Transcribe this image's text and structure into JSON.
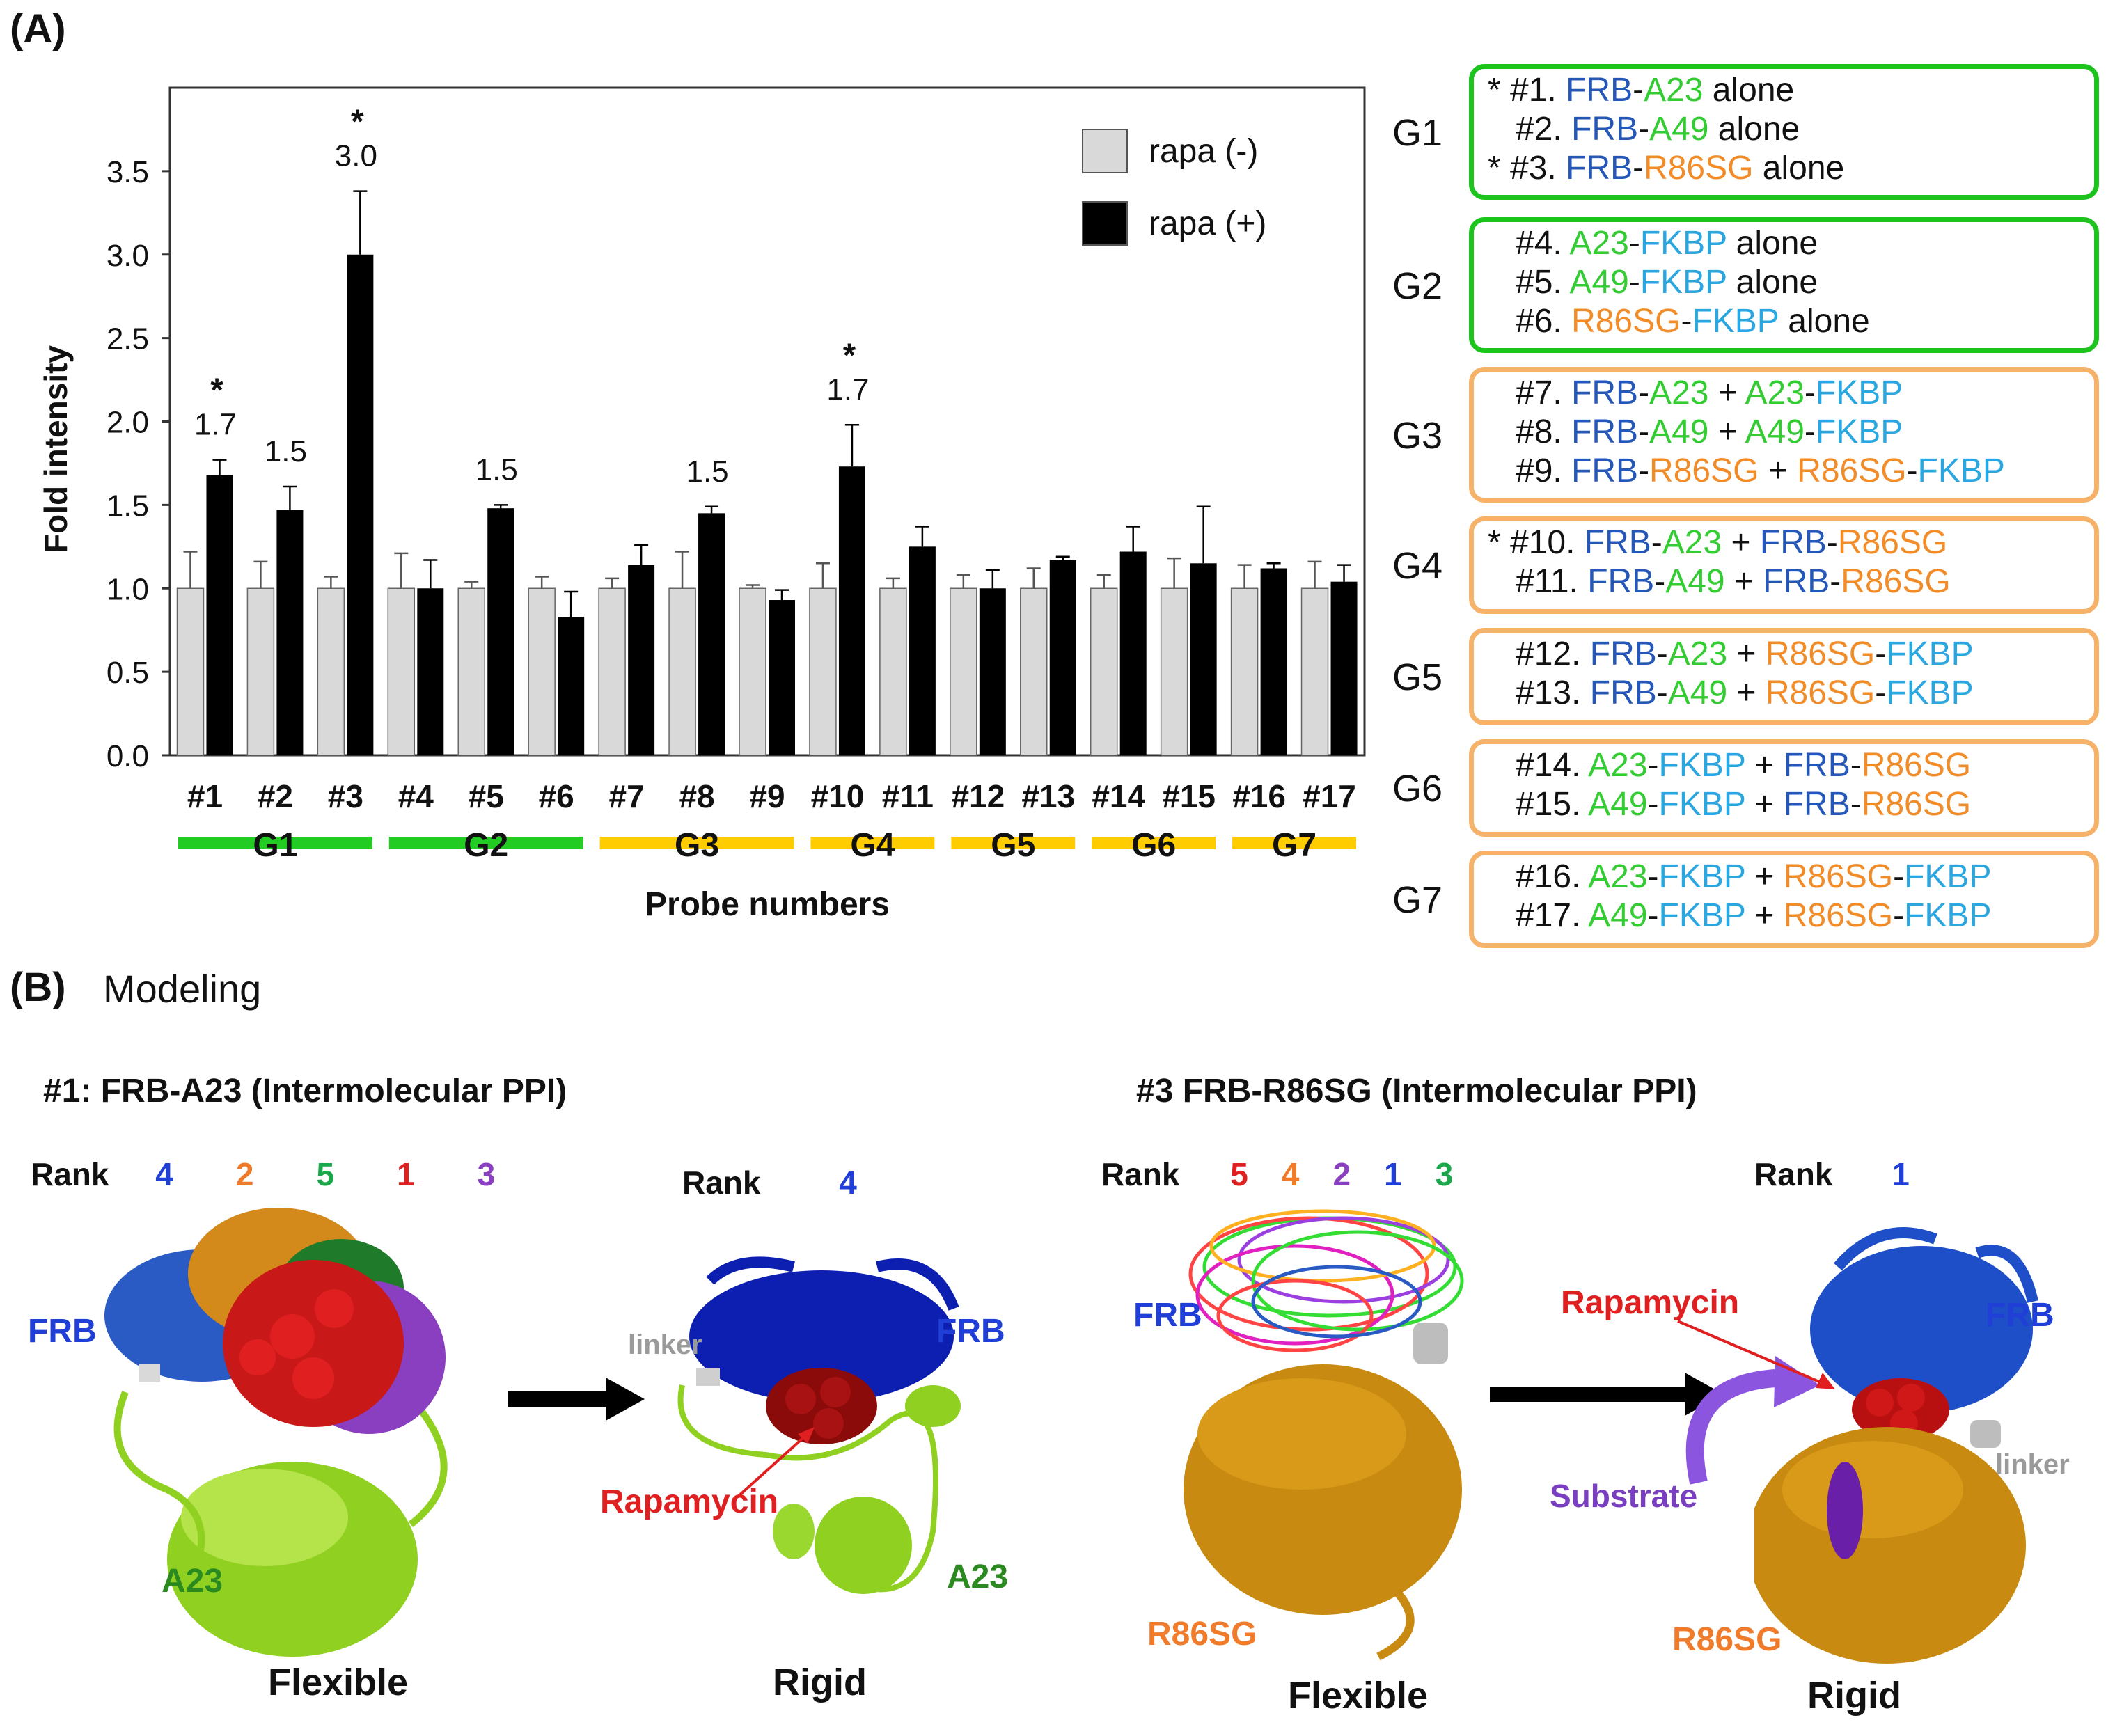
{
  "panel_a": {
    "label": "(A)"
  },
  "panel_b": {
    "label": "(B)",
    "title": "Modeling"
  },
  "colors": {
    "rapa_minus": "#d9d9d9",
    "rapa_plus": "#000000",
    "frb": "#2457b8",
    "a_green": "#33cc33",
    "r86sg": "#f28c28",
    "fkbp": "#2aa7e0",
    "box_green": "#1ec41e",
    "box_orange": "#f7b26a",
    "bar_green": "#22cc22",
    "bar_yellow": "#ffcc00"
  },
  "chart_data": {
    "type": "bar",
    "ylabel": "Fold intensity",
    "xlabel": "Probe numbers",
    "ylim": [
      0,
      4.0
    ],
    "yticks": [
      "0.0",
      "0.5",
      "1.0",
      "1.5",
      "2.0",
      "2.5",
      "3.0",
      "3.5"
    ],
    "categories": [
      "#1",
      "#2",
      "#3",
      "#4",
      "#5",
      "#6",
      "#7",
      "#8",
      "#9",
      "#10",
      "#11",
      "#12",
      "#13",
      "#14",
      "#15",
      "#16",
      "#17"
    ],
    "legend_position": "top-right",
    "series": [
      {
        "name": "rapa (-)",
        "values": [
          1.0,
          1.0,
          1.0,
          1.0,
          1.0,
          1.0,
          1.0,
          1.0,
          1.0,
          1.0,
          1.0,
          1.0,
          1.0,
          1.0,
          1.0,
          1.0,
          1.0
        ],
        "errors": [
          0.22,
          0.16,
          0.07,
          0.21,
          0.04,
          0.07,
          0.06,
          0.22,
          0.02,
          0.15,
          0.06,
          0.08,
          0.12,
          0.08,
          0.18,
          0.14,
          0.16
        ]
      },
      {
        "name": "rapa (+)",
        "values": [
          1.68,
          1.47,
          3.0,
          1.0,
          1.48,
          0.83,
          1.14,
          1.45,
          0.93,
          1.73,
          1.25,
          1.0,
          1.17,
          1.22,
          1.15,
          1.12,
          1.04
        ],
        "errors": [
          0.09,
          0.14,
          0.38,
          0.17,
          0.02,
          0.15,
          0.12,
          0.04,
          0.06,
          0.25,
          0.12,
          0.11,
          0.02,
          0.15,
          0.34,
          0.03,
          0.1
        ]
      }
    ],
    "annotations": [
      {
        "index": 0,
        "text": "1.7",
        "star": true
      },
      {
        "index": 1,
        "text": "1.5",
        "star": false
      },
      {
        "index": 2,
        "text": "3.0",
        "star": true
      },
      {
        "index": 4,
        "text": "1.5",
        "star": false
      },
      {
        "index": 7,
        "text": "1.5",
        "star": false
      },
      {
        "index": 9,
        "text": "1.7",
        "star": true
      }
    ],
    "groups": [
      {
        "name": "G1",
        "from": 0,
        "to": 2,
        "color": "green"
      },
      {
        "name": "G2",
        "from": 3,
        "to": 5,
        "color": "green"
      },
      {
        "name": "G3",
        "from": 6,
        "to": 8,
        "color": "yellow"
      },
      {
        "name": "G4",
        "from": 9,
        "to": 10,
        "color": "yellow"
      },
      {
        "name": "G5",
        "from": 11,
        "to": 12,
        "color": "yellow"
      },
      {
        "name": "G6",
        "from": 13,
        "to": 14,
        "color": "yellow"
      },
      {
        "name": "G7",
        "from": 15,
        "to": 16,
        "color": "yellow"
      }
    ]
  },
  "probe_legend": [
    {
      "group": "G1",
      "border": "green",
      "lines": [
        [
          {
            "t": "* ",
            "c": "k"
          },
          {
            "t": "#1. ",
            "c": "k"
          },
          {
            "t": "FRB",
            "c": "frb"
          },
          {
            "t": "-",
            "c": "k"
          },
          {
            "t": "A23",
            "c": "g"
          },
          {
            "t": " alone",
            "c": "k"
          }
        ],
        [
          {
            "t": "   #2. ",
            "c": "k"
          },
          {
            "t": "FRB",
            "c": "frb"
          },
          {
            "t": "-",
            "c": "k"
          },
          {
            "t": "A49",
            "c": "g"
          },
          {
            "t": " alone",
            "c": "k"
          }
        ],
        [
          {
            "t": "* ",
            "c": "k"
          },
          {
            "t": "#3. ",
            "c": "k"
          },
          {
            "t": "FRB",
            "c": "frb"
          },
          {
            "t": "-",
            "c": "k"
          },
          {
            "t": "R86SG",
            "c": "o"
          },
          {
            "t": " alone",
            "c": "k"
          }
        ]
      ]
    },
    {
      "group": "G2",
      "border": "green",
      "lines": [
        [
          {
            "t": "#4. ",
            "c": "k"
          },
          {
            "t": "A23",
            "c": "g"
          },
          {
            "t": "-",
            "c": "k"
          },
          {
            "t": "FKBP",
            "c": "f"
          },
          {
            "t": " alone",
            "c": "k"
          }
        ],
        [
          {
            "t": "#5. ",
            "c": "k"
          },
          {
            "t": "A49",
            "c": "g"
          },
          {
            "t": "-",
            "c": "k"
          },
          {
            "t": "FKBP",
            "c": "f"
          },
          {
            "t": " alone",
            "c": "k"
          }
        ],
        [
          {
            "t": "#6. ",
            "c": "k"
          },
          {
            "t": "R86SG",
            "c": "o"
          },
          {
            "t": "-",
            "c": "k"
          },
          {
            "t": "FKBP",
            "c": "f"
          },
          {
            "t": " alone",
            "c": "k"
          }
        ]
      ]
    },
    {
      "group": "G3",
      "border": "orange",
      "lines": [
        [
          {
            "t": "#7. ",
            "c": "k"
          },
          {
            "t": "FRB",
            "c": "frb"
          },
          {
            "t": "-",
            "c": "k"
          },
          {
            "t": "A23",
            "c": "g"
          },
          {
            "t": " + ",
            "c": "k"
          },
          {
            "t": "A23",
            "c": "g"
          },
          {
            "t": "-",
            "c": "k"
          },
          {
            "t": "FKBP",
            "c": "f"
          }
        ],
        [
          {
            "t": "#8. ",
            "c": "k"
          },
          {
            "t": "FRB",
            "c": "frb"
          },
          {
            "t": "-",
            "c": "k"
          },
          {
            "t": "A49",
            "c": "g"
          },
          {
            "t": " + ",
            "c": "k"
          },
          {
            "t": "A49",
            "c": "g"
          },
          {
            "t": "-",
            "c": "k"
          },
          {
            "t": "FKBP",
            "c": "f"
          }
        ],
        [
          {
            "t": "#9. ",
            "c": "k"
          },
          {
            "t": "FRB",
            "c": "frb"
          },
          {
            "t": "-",
            "c": "k"
          },
          {
            "t": "R86SG",
            "c": "o"
          },
          {
            "t": " + ",
            "c": "k"
          },
          {
            "t": "R86SG",
            "c": "o"
          },
          {
            "t": "-",
            "c": "k"
          },
          {
            "t": "FKBP",
            "c": "f"
          }
        ]
      ]
    },
    {
      "group": "G4",
      "border": "orange",
      "lines": [
        [
          {
            "t": "* ",
            "c": "k"
          },
          {
            "t": "#10. ",
            "c": "k"
          },
          {
            "t": "FRB",
            "c": "frb"
          },
          {
            "t": "-",
            "c": "k"
          },
          {
            "t": "A23",
            "c": "g"
          },
          {
            "t": " + ",
            "c": "k"
          },
          {
            "t": "FRB",
            "c": "frb"
          },
          {
            "t": "-",
            "c": "k"
          },
          {
            "t": "R86SG",
            "c": "o"
          }
        ],
        [
          {
            "t": "   #11. ",
            "c": "k"
          },
          {
            "t": "FRB",
            "c": "frb"
          },
          {
            "t": "-",
            "c": "k"
          },
          {
            "t": "A49",
            "c": "g"
          },
          {
            "t": " + ",
            "c": "k"
          },
          {
            "t": "FRB",
            "c": "frb"
          },
          {
            "t": "-",
            "c": "k"
          },
          {
            "t": "R86SG",
            "c": "o"
          }
        ]
      ]
    },
    {
      "group": "G5",
      "border": "orange",
      "lines": [
        [
          {
            "t": "#12. ",
            "c": "k"
          },
          {
            "t": "FRB",
            "c": "frb"
          },
          {
            "t": "-",
            "c": "k"
          },
          {
            "t": "A23",
            "c": "g"
          },
          {
            "t": " + ",
            "c": "k"
          },
          {
            "t": "R86SG",
            "c": "o"
          },
          {
            "t": "-",
            "c": "k"
          },
          {
            "t": "FKBP",
            "c": "f"
          }
        ],
        [
          {
            "t": "#13. ",
            "c": "k"
          },
          {
            "t": "FRB",
            "c": "frb"
          },
          {
            "t": "-",
            "c": "k"
          },
          {
            "t": "A49",
            "c": "g"
          },
          {
            "t": " + ",
            "c": "k"
          },
          {
            "t": "R86SG",
            "c": "o"
          },
          {
            "t": "-",
            "c": "k"
          },
          {
            "t": "FKBP",
            "c": "f"
          }
        ]
      ]
    },
    {
      "group": "G6",
      "border": "orange",
      "lines": [
        [
          {
            "t": "#14. ",
            "c": "k"
          },
          {
            "t": "A23",
            "c": "g"
          },
          {
            "t": "-",
            "c": "k"
          },
          {
            "t": "FKBP",
            "c": "f"
          },
          {
            "t": " + ",
            "c": "k"
          },
          {
            "t": "FRB",
            "c": "frb"
          },
          {
            "t": "-",
            "c": "k"
          },
          {
            "t": "R86SG",
            "c": "o"
          }
        ],
        [
          {
            "t": "#15. ",
            "c": "k"
          },
          {
            "t": "A49",
            "c": "g"
          },
          {
            "t": "-",
            "c": "k"
          },
          {
            "t": "FKBP",
            "c": "f"
          },
          {
            "t": " + ",
            "c": "k"
          },
          {
            "t": "FRB",
            "c": "frb"
          },
          {
            "t": "-",
            "c": "k"
          },
          {
            "t": "R86SG",
            "c": "o"
          }
        ]
      ]
    },
    {
      "group": "G7",
      "border": "orange",
      "lines": [
        [
          {
            "t": "#16. ",
            "c": "k"
          },
          {
            "t": "A23",
            "c": "g"
          },
          {
            "t": "-",
            "c": "k"
          },
          {
            "t": "FKBP",
            "c": "f"
          },
          {
            "t": " + ",
            "c": "k"
          },
          {
            "t": "R86SG",
            "c": "o"
          },
          {
            "t": "-",
            "c": "k"
          },
          {
            "t": "FKBP",
            "c": "f"
          }
        ],
        [
          {
            "t": "#17. ",
            "c": "k"
          },
          {
            "t": "A49",
            "c": "g"
          },
          {
            "t": "-",
            "c": "k"
          },
          {
            "t": "FKBP",
            "c": "f"
          },
          {
            "t": " + ",
            "c": "k"
          },
          {
            "t": "R86SG",
            "c": "o"
          },
          {
            "t": "-",
            "c": "k"
          },
          {
            "t": "FKBP",
            "c": "f"
          }
        ]
      ]
    }
  ],
  "modeling": {
    "left": {
      "title": "#1: FRB-A23 (Intermolecular PPI)",
      "flexible": {
        "rank_label": "Rank",
        "ranks": [
          {
            "n": "4",
            "color": "#1f3fd6"
          },
          {
            "n": "2",
            "color": "#f07b2a"
          },
          {
            "n": "5",
            "color": "#1aa84a"
          },
          {
            "n": "1",
            "color": "#e02020"
          },
          {
            "n": "3",
            "color": "#8a3fc0"
          }
        ],
        "labels": {
          "frb": "FRB",
          "partner": "A23"
        },
        "caption": "Flexible"
      },
      "rigid": {
        "rank_label": "Rank",
        "rank": "4",
        "rank_color": "#1f3fd6",
        "labels": {
          "linker": "linker",
          "frb": "FRB",
          "ligand": "Rapamycin",
          "partner": "A23"
        },
        "caption": "Rigid"
      }
    },
    "right": {
      "title": "#3 FRB-R86SG (Intermolecular PPI)",
      "flexible": {
        "rank_label": "Rank",
        "ranks": [
          {
            "n": "5",
            "color": "#e02020"
          },
          {
            "n": "4",
            "color": "#f07b2a"
          },
          {
            "n": "2",
            "color": "#8a3fc0"
          },
          {
            "n": "1",
            "color": "#1f3fd6"
          },
          {
            "n": "3",
            "color": "#1aa84a"
          }
        ],
        "labels": {
          "frb": "FRB",
          "partner": "R86SG"
        },
        "caption": "Flexible"
      },
      "rigid": {
        "rank_label": "Rank",
        "rank": "1",
        "rank_color": "#1f3fd6",
        "labels": {
          "ligand": "Rapamycin",
          "frb": "FRB",
          "substrate": "Substrate",
          "linker": "linker",
          "partner": "R86SG"
        },
        "caption": "Rigid"
      }
    }
  }
}
